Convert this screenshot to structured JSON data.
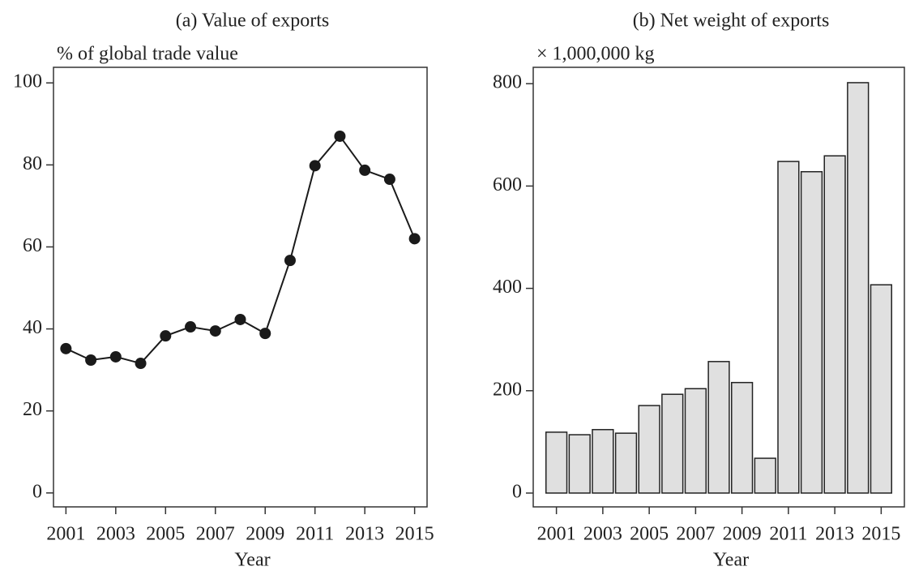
{
  "chart_data": [
    {
      "type": "line",
      "title": "(a) Value of exports",
      "ylabel": "% of global trade value",
      "xlabel": "Year",
      "x": [
        2001,
        2002,
        2003,
        2004,
        2005,
        2006,
        2007,
        2008,
        2009,
        2010,
        2011,
        2012,
        2013,
        2014,
        2015
      ],
      "values": [
        35.2,
        32.4,
        33.2,
        31.6,
        38.3,
        40.5,
        39.5,
        42.3,
        38.9,
        56.7,
        79.8,
        87,
        78.7,
        76.5,
        62
      ],
      "color": "#1a1a1a",
      "xlim": [
        2000.5,
        2015.5
      ],
      "xticks": [
        2001,
        2003,
        2005,
        2007,
        2009,
        2011,
        2013,
        2015
      ],
      "ylim": [
        -3.4,
        103.8
      ],
      "yticks": [
        0,
        20,
        40,
        60,
        80,
        100
      ]
    },
    {
      "type": "bar",
      "title": "(b) Net weight of exports",
      "ylabel": "× 1,000,000 kg",
      "xlabel": "Year",
      "x": [
        2001,
        2002,
        2003,
        2004,
        2005,
        2006,
        2007,
        2008,
        2009,
        2010,
        2011,
        2012,
        2013,
        2014,
        2015
      ],
      "values": [
        119,
        114,
        124,
        117,
        171,
        193,
        204,
        257,
        216,
        68,
        648,
        628,
        659,
        802,
        407
      ],
      "color": "#e0e0e0",
      "xlim": [
        2000,
        2016
      ],
      "xticks": [
        2001,
        2003,
        2005,
        2007,
        2009,
        2011,
        2013,
        2015
      ],
      "ylim": [
        -27,
        832
      ],
      "yticks": [
        0,
        200,
        400,
        600,
        800
      ]
    }
  ]
}
